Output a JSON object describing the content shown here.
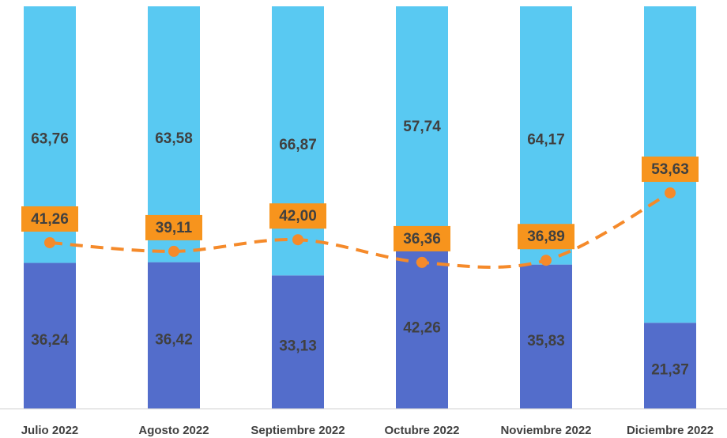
{
  "chart_data": {
    "type": "bar",
    "stacked": true,
    "categories": [
      "Julio 2022",
      "Agosto 2022",
      "Septiembre 2022",
      "Octubre 2022",
      "Noviembre 2022",
      "Diciembre 2022"
    ],
    "ylim": [
      0,
      100
    ],
    "series": [
      {
        "color": "#536dcb",
        "values": [
          36.24,
          36.42,
          33.13,
          42.26,
          35.83,
          21.37
        ],
        "value_labels": [
          "36,24",
          "36,42",
          "33,13",
          "42,26",
          "35,83",
          "21,37"
        ]
      },
      {
        "color": "#59c9f2",
        "values": [
          63.76,
          63.58,
          66.87,
          57.74,
          64.17,
          78.63
        ],
        "value_labels": [
          "63,76",
          "63,58",
          "66,87",
          "57,74",
          "64,17",
          null
        ]
      }
    ],
    "line": {
      "type": "line",
      "color": "#f58a2a",
      "values": [
        41.26,
        39.11,
        42.0,
        36.36,
        36.89,
        53.63
      ],
      "value_labels": [
        "41,26",
        "39,11",
        "42,00",
        "36,36",
        "36,89",
        "53,63"
      ]
    }
  }
}
